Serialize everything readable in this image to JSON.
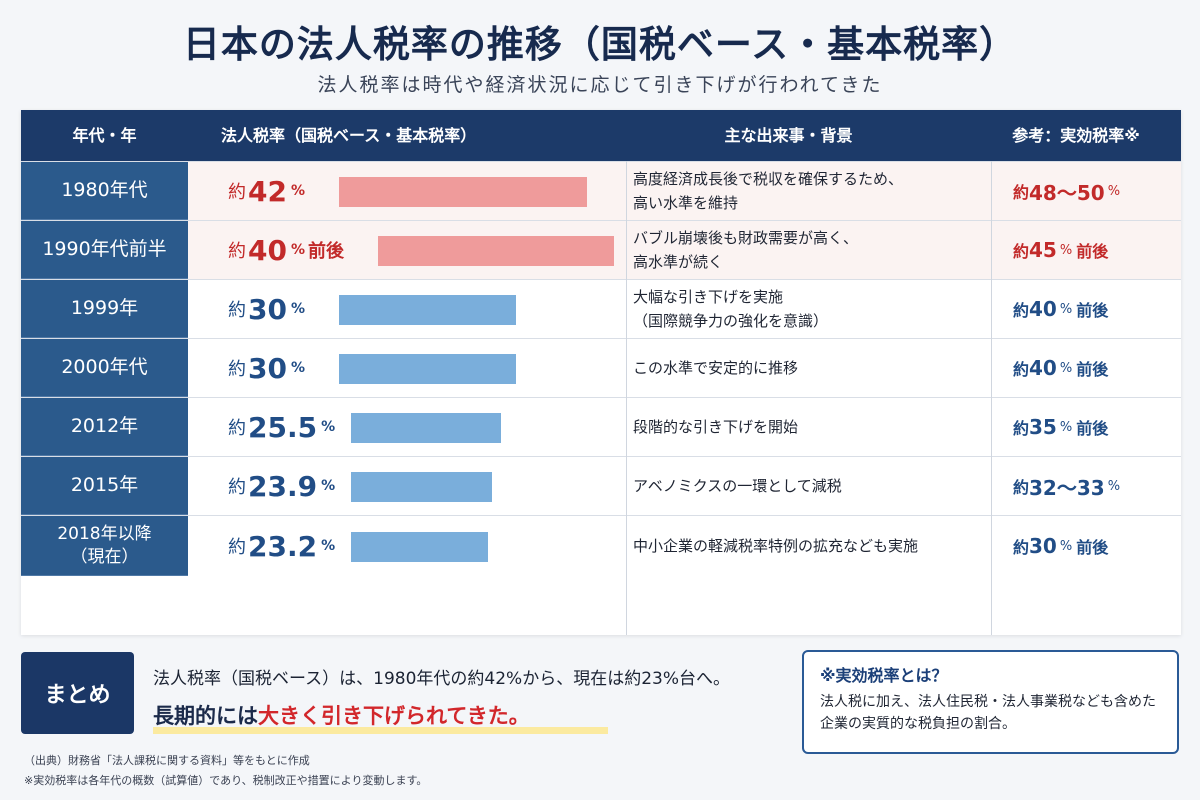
{
  "title": "日本の法人税率の推移（国税ベース・基本税率）",
  "subtitle": "法人税率は時代や経済状況に応じて引き下げが行われてきた",
  "colors": {
    "header_bg": "#1c3a69",
    "year_bg": "#2b5a8c",
    "high": "#c22a2a",
    "low": "#214d86",
    "bar_high": "#ef9b9b",
    "bar_low": "#7aaedb"
  },
  "table": {
    "headers": {
      "year": "年代・年",
      "rate": "法人税率（国税ベース・基本税率）",
      "event": "主な出来事・背景",
      "effective": "参考：実効税率※"
    },
    "rows": [
      {
        "year": "1980年代",
        "rate_prefix": "約",
        "rate": "42",
        "rate_unit": "%",
        "rate_suffix": "",
        "rate_value": 42,
        "highlight": "red",
        "event": "高度経済成長後で税収を確保するため、\n高い水準を維持",
        "eff_prefix": "約",
        "eff": "48〜50",
        "eff_unit": "%",
        "eff_suffix": ""
      },
      {
        "year": "1990年代前半",
        "rate_prefix": "約",
        "rate": "40",
        "rate_unit": "%",
        "rate_suffix": "前後",
        "rate_value": 40,
        "highlight": "red",
        "event": "バブル崩壊後も財政需要が高く、\n高水準が続く",
        "eff_prefix": "約",
        "eff": "45",
        "eff_unit": "%",
        "eff_suffix": "前後"
      },
      {
        "year": "1999年",
        "rate_prefix": "約",
        "rate": "30",
        "rate_unit": "%",
        "rate_suffix": "",
        "rate_value": 30,
        "highlight": "blue",
        "event": "大幅な引き下げを実施\n（国際競争力の強化を意識）",
        "eff_prefix": "約",
        "eff": "40",
        "eff_unit": "%",
        "eff_suffix": "前後"
      },
      {
        "year": "2000年代",
        "rate_prefix": "約",
        "rate": "30",
        "rate_unit": "%",
        "rate_suffix": "",
        "rate_value": 30,
        "highlight": "blue",
        "event": "この水準で安定的に推移",
        "eff_prefix": "約",
        "eff": "40",
        "eff_unit": "%",
        "eff_suffix": "前後"
      },
      {
        "year": "2012年",
        "rate_prefix": "約",
        "rate": "25.5",
        "rate_unit": "%",
        "rate_suffix": "",
        "rate_value": 25.5,
        "highlight": "blue",
        "event": "段階的な引き下げを開始",
        "eff_prefix": "約",
        "eff": "35",
        "eff_unit": "%",
        "eff_suffix": "前後"
      },
      {
        "year": "2015年",
        "rate_prefix": "約",
        "rate": "23.9",
        "rate_unit": "%",
        "rate_suffix": "",
        "rate_value": 23.9,
        "highlight": "blue",
        "event": "アベノミクスの一環として減税",
        "eff_prefix": "約",
        "eff": "32〜33",
        "eff_unit": "%",
        "eff_suffix": ""
      },
      {
        "year": "2018年以降\n（現在）",
        "rate_prefix": "約",
        "rate": "23.2",
        "rate_unit": "%",
        "rate_suffix": "",
        "rate_value": 23.2,
        "highlight": "blue",
        "event": "中小企業の軽減税率特例の拡充なども実施",
        "eff_prefix": "約",
        "eff": "30",
        "eff_unit": "%",
        "eff_suffix": "前後"
      }
    ]
  },
  "summary": {
    "badge": "まとめ",
    "line1": "法人税率（国税ベース）は、1980年代の約42%から、現在は約23%台へ。",
    "line2_a": "長期的には",
    "line2_b": "大きく引き下げられてきた。"
  },
  "note": {
    "title": "※実効税率とは？",
    "body": "法人税に加え、法人住民税・法人事業税なども含めた企業の実質的な税負担の割合。"
  },
  "footnotes": [
    "（出典）財務省「法人課税に関する資料」等をもとに作成",
    "※実効税率は各年代の概数（試算値）であり、税制改正や措置により変動します。"
  ]
}
